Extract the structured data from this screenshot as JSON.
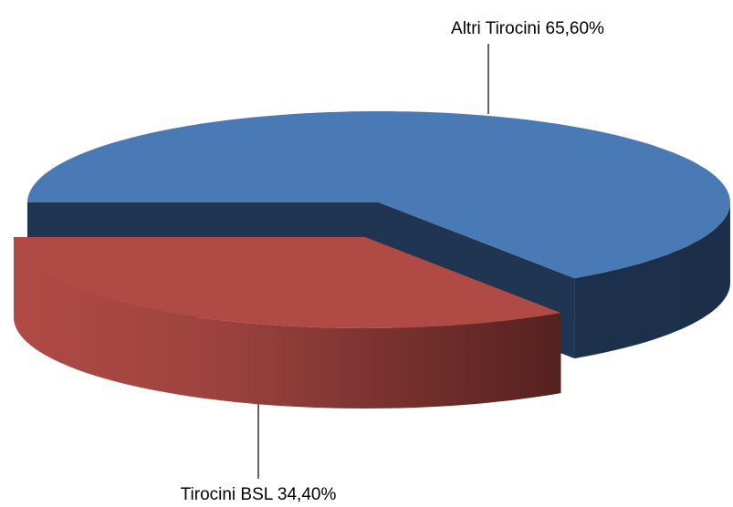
{
  "chart_data": {
    "type": "pie",
    "categories": [
      "Altri Tirocini",
      "Tirocini BSL"
    ],
    "values": [
      65.6,
      34.4
    ],
    "value_labels": [
      "65,60%",
      "34,40%"
    ],
    "colors": [
      "#4a7ab5",
      "#b04a45"
    ]
  }
}
